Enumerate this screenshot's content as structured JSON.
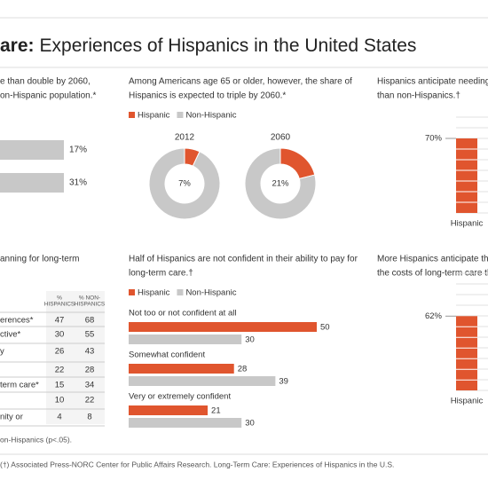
{
  "header": {
    "title_bold": "are:",
    "title": "Experiences of Hispanics in the United States"
  },
  "chart_data": [
    {
      "type": "hbar-cropped",
      "text": [
        "e than double by 2060,",
        "on-Hispanic population.*"
      ],
      "values": [
        17,
        31
      ],
      "value_labels": [
        "17%",
        "31%"
      ],
      "color": "#c8c8c8"
    },
    {
      "type": "donut",
      "text": [
        "Among Americans age 65 or older, however, the share of",
        "Hispanics is expected to triple by 2060.*"
      ],
      "categories": [
        "2012",
        "2060"
      ],
      "series": [
        {
          "name": "Hispanic",
          "color": "#e0552e",
          "values": [
            7,
            21
          ],
          "value_labels": [
            "7%",
            "21%"
          ]
        },
        {
          "name": "Non-Hispanic",
          "color": "#c8c8c8",
          "values": [
            93,
            79
          ]
        }
      ]
    },
    {
      "type": "vbar",
      "text": [
        "Hispanics anticipate needing",
        "than non-Hispanics.†"
      ],
      "categories": [
        "Hispanic"
      ],
      "values": [
        70
      ],
      "value_labels": [
        "70%"
      ],
      "color": "#e0552e"
    },
    {
      "type": "grouped-hbar",
      "text": [
        "Half of Hispanics are not confident in their ability to pay for",
        "long-term care.†"
      ],
      "categories": [
        "Not too or not confident at all",
        "Somewhat confident",
        "Very or extremely confident"
      ],
      "series": [
        {
          "name": "Hispanic",
          "color": "#e0552e",
          "values": [
            50,
            28,
            21
          ]
        },
        {
          "name": "Non-Hispanic",
          "color": "#c8c8c8",
          "values": [
            30,
            39,
            30
          ]
        }
      ]
    },
    {
      "type": "vbar",
      "text": [
        "More Hispanics anticipate the",
        "the costs of long-term care th"
      ],
      "categories": [
        "Hispanic"
      ],
      "values": [
        62
      ],
      "value_labels": [
        "62%"
      ],
      "color": "#e0552e"
    }
  ],
  "table": {
    "text": [
      "anning for long-term"
    ],
    "columns": [
      [
        "%",
        "HISPANICS"
      ],
      [
        "% NON-",
        "HISPANICS"
      ]
    ],
    "rows": [
      [
        "erences*",
        47,
        68
      ],
      [
        "ctive*",
        30,
        55
      ],
      [
        "y",
        26,
        43
      ],
      [
        null,
        22,
        28
      ],
      [
        "term care*",
        15,
        34
      ],
      [
        null,
        10,
        22
      ],
      [
        "nity or",
        4,
        8
      ]
    ],
    "footnote": "on-Hispanics (p<.05)."
  },
  "footer": "(†) Associated Press-NORC Center for Public Affairs Research. Long-Term Care: Experiences of Hispanics in the U.S."
}
